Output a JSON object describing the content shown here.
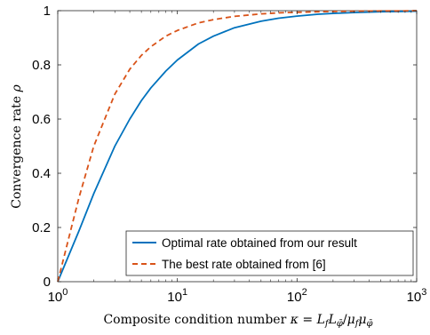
{
  "chart_data": {
    "type": "line",
    "xscale": "log",
    "xlim": [
      1,
      1000
    ],
    "ylim": [
      0,
      1
    ],
    "xticks": [
      1,
      10,
      100,
      1000
    ],
    "xtick_labels": [
      {
        "base": "10",
        "exp": "0"
      },
      {
        "base": "10",
        "exp": "1"
      },
      {
        "base": "10",
        "exp": "2"
      },
      {
        "base": "10",
        "exp": "3"
      }
    ],
    "yticks": [
      0,
      0.2,
      0.4,
      0.6,
      0.8,
      1
    ],
    "ytick_labels": [
      "0",
      "0.2",
      "0.4",
      "0.6",
      "0.8",
      "1"
    ],
    "grid": false,
    "xlabel": {
      "text": "Composite condition number",
      "symbol": "κ",
      "formula": "= L_f L_φ̄ / μ_f μ_φ̄",
      "L": "L",
      "mu": "μ",
      "sub_f": "f",
      "sub_phi": "φ̄",
      "eq": "=",
      "slash": "/"
    },
    "ylabel": {
      "text": "Convergence rate",
      "symbol": "ρ"
    },
    "legend_position": "bottom-right",
    "series": [
      {
        "name": "Optimal rate obtained from our result",
        "color": "#0072BD",
        "style": "solid",
        "x": [
          1,
          1.5,
          2,
          3,
          4,
          5,
          6,
          8,
          10,
          15,
          20,
          30,
          50,
          70,
          100,
          150,
          200,
          300,
          500,
          700,
          1000
        ],
        "y": [
          0,
          0.186,
          0.325,
          0.5,
          0.6,
          0.668,
          0.715,
          0.777,
          0.818,
          0.877,
          0.906,
          0.937,
          0.961,
          0.972,
          0.98,
          0.987,
          0.99,
          0.993,
          0.996,
          0.997,
          0.998
        ]
      },
      {
        "name": "The best rate obtained from [6]",
        "color": "#D95319",
        "style": "dashed",
        "x": [
          1,
          1.5,
          2,
          3,
          4,
          5,
          6,
          8,
          10,
          15,
          20,
          30,
          50,
          70,
          100,
          150,
          200,
          300,
          500,
          700,
          1000
        ],
        "y": [
          0,
          0.308,
          0.5,
          0.692,
          0.784,
          0.835,
          0.867,
          0.906,
          0.927,
          0.955,
          0.967,
          0.979,
          0.988,
          0.992,
          0.994,
          0.996,
          0.997,
          0.998,
          0.999,
          0.999,
          1.0
        ]
      }
    ]
  }
}
